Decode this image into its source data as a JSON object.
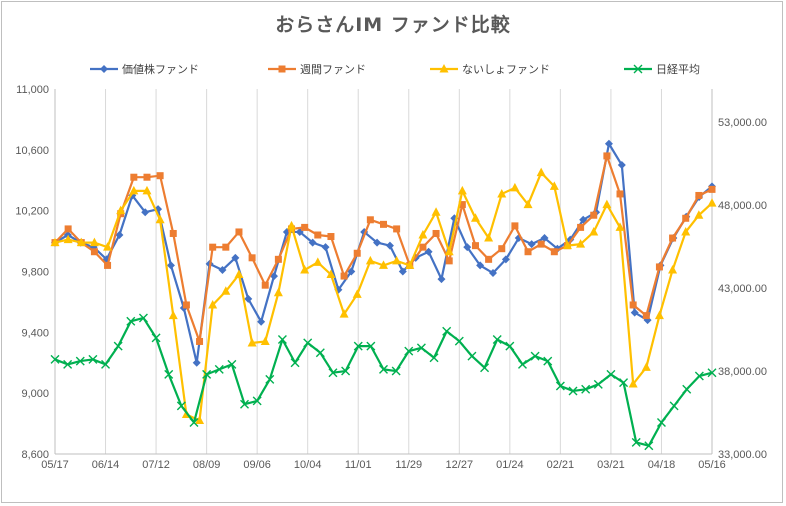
{
  "chart_data": {
    "type": "line",
    "title": "おらさんIM ファンド比較",
    "x_labels": [
      "05/17",
      "06/14",
      "07/12",
      "08/09",
      "09/06",
      "10/04",
      "11/01",
      "11/29",
      "12/27",
      "01/24",
      "02/21",
      "03/21",
      "04/18",
      "05/16"
    ],
    "y_left": {
      "min": 8600,
      "max": 11000,
      "ticks": [
        "8,600",
        "9,000",
        "9,400",
        "9,800",
        "10,200",
        "10,600",
        "11,000"
      ]
    },
    "y_right": {
      "min": 33000,
      "max": 55000,
      "ticks": [
        "33,000.00",
        "38,000.00",
        "43,000.00",
        "48,000.00",
        "53,000.00"
      ]
    },
    "grid": "vertical",
    "legend_position": "top",
    "series": [
      {
        "name": "価値株ファンド",
        "axis": "left",
        "color": "#4472c4",
        "marker": "diamond",
        "values": [
          9990,
          10040,
          9990,
          9960,
          9880,
          10040,
          10300,
          10190,
          10210,
          9840,
          9560,
          9200,
          9850,
          9810,
          9890,
          9620,
          9470,
          9770,
          10060,
          10060,
          9990,
          9960,
          9680,
          9800,
          10060,
          9990,
          9970,
          9800,
          9890,
          9930,
          9750,
          10150,
          9960,
          9840,
          9790,
          9880,
          10020,
          9980,
          10020,
          9950,
          10010,
          10140,
          10190,
          10640,
          10500,
          9530,
          9480,
          9840,
          10020,
          10160,
          10290,
          10360
        ]
      },
      {
        "name": "週間ファンド",
        "axis": "left",
        "color": "#ed7d31",
        "marker": "square",
        "values": [
          9990,
          10080,
          9990,
          9930,
          9840,
          10180,
          10420,
          10420,
          10430,
          10050,
          9580,
          9340,
          9960,
          9960,
          10060,
          9890,
          9710,
          9880,
          10080,
          10090,
          10040,
          10030,
          9770,
          9920,
          10140,
          10110,
          10080,
          9840,
          9960,
          10050,
          9870,
          10240,
          9970,
          9880,
          9950,
          10100,
          9930,
          9980,
          9930,
          9970,
          10090,
          10170,
          10560,
          10310,
          9580,
          9510,
          9830,
          10020,
          10150,
          10300,
          10340
        ]
      },
      {
        "name": "ないしょファンド",
        "axis": "left",
        "color": "#ffc000",
        "marker": "triangle",
        "values": [
          9990,
          10010,
          9990,
          9990,
          9960,
          10200,
          10330,
          10330,
          10140,
          9510,
          8860,
          8820,
          9580,
          9670,
          9780,
          9330,
          9340,
          9660,
          10100,
          9810,
          9860,
          9780,
          9520,
          9650,
          9870,
          9840,
          9870,
          9840,
          10040,
          10190,
          9930,
          10330,
          10150,
          10020,
          10310,
          10350,
          10240,
          10450,
          10360,
          9970,
          9980,
          10060,
          10240,
          10090,
          9060,
          9170,
          9510,
          9810,
          10060,
          10170,
          10250
        ]
      },
      {
        "name": "日経平均",
        "axis": "right",
        "color": "#00b050",
        "marker": "x",
        "values": [
          38700,
          38400,
          38600,
          38700,
          38400,
          39500,
          41000,
          41200,
          40000,
          37800,
          35900,
          34900,
          37800,
          38100,
          38400,
          36000,
          36200,
          37500,
          39900,
          38500,
          39700,
          39100,
          37900,
          38000,
          39500,
          39500,
          38100,
          38000,
          39200,
          39400,
          38800,
          40400,
          39800,
          38900,
          38200,
          39900,
          39500,
          38400,
          38900,
          38600,
          37100,
          36800,
          36900,
          37200,
          37800,
          37300,
          33700,
          33500,
          34900,
          35900,
          36900,
          37700,
          37900
        ]
      }
    ]
  }
}
